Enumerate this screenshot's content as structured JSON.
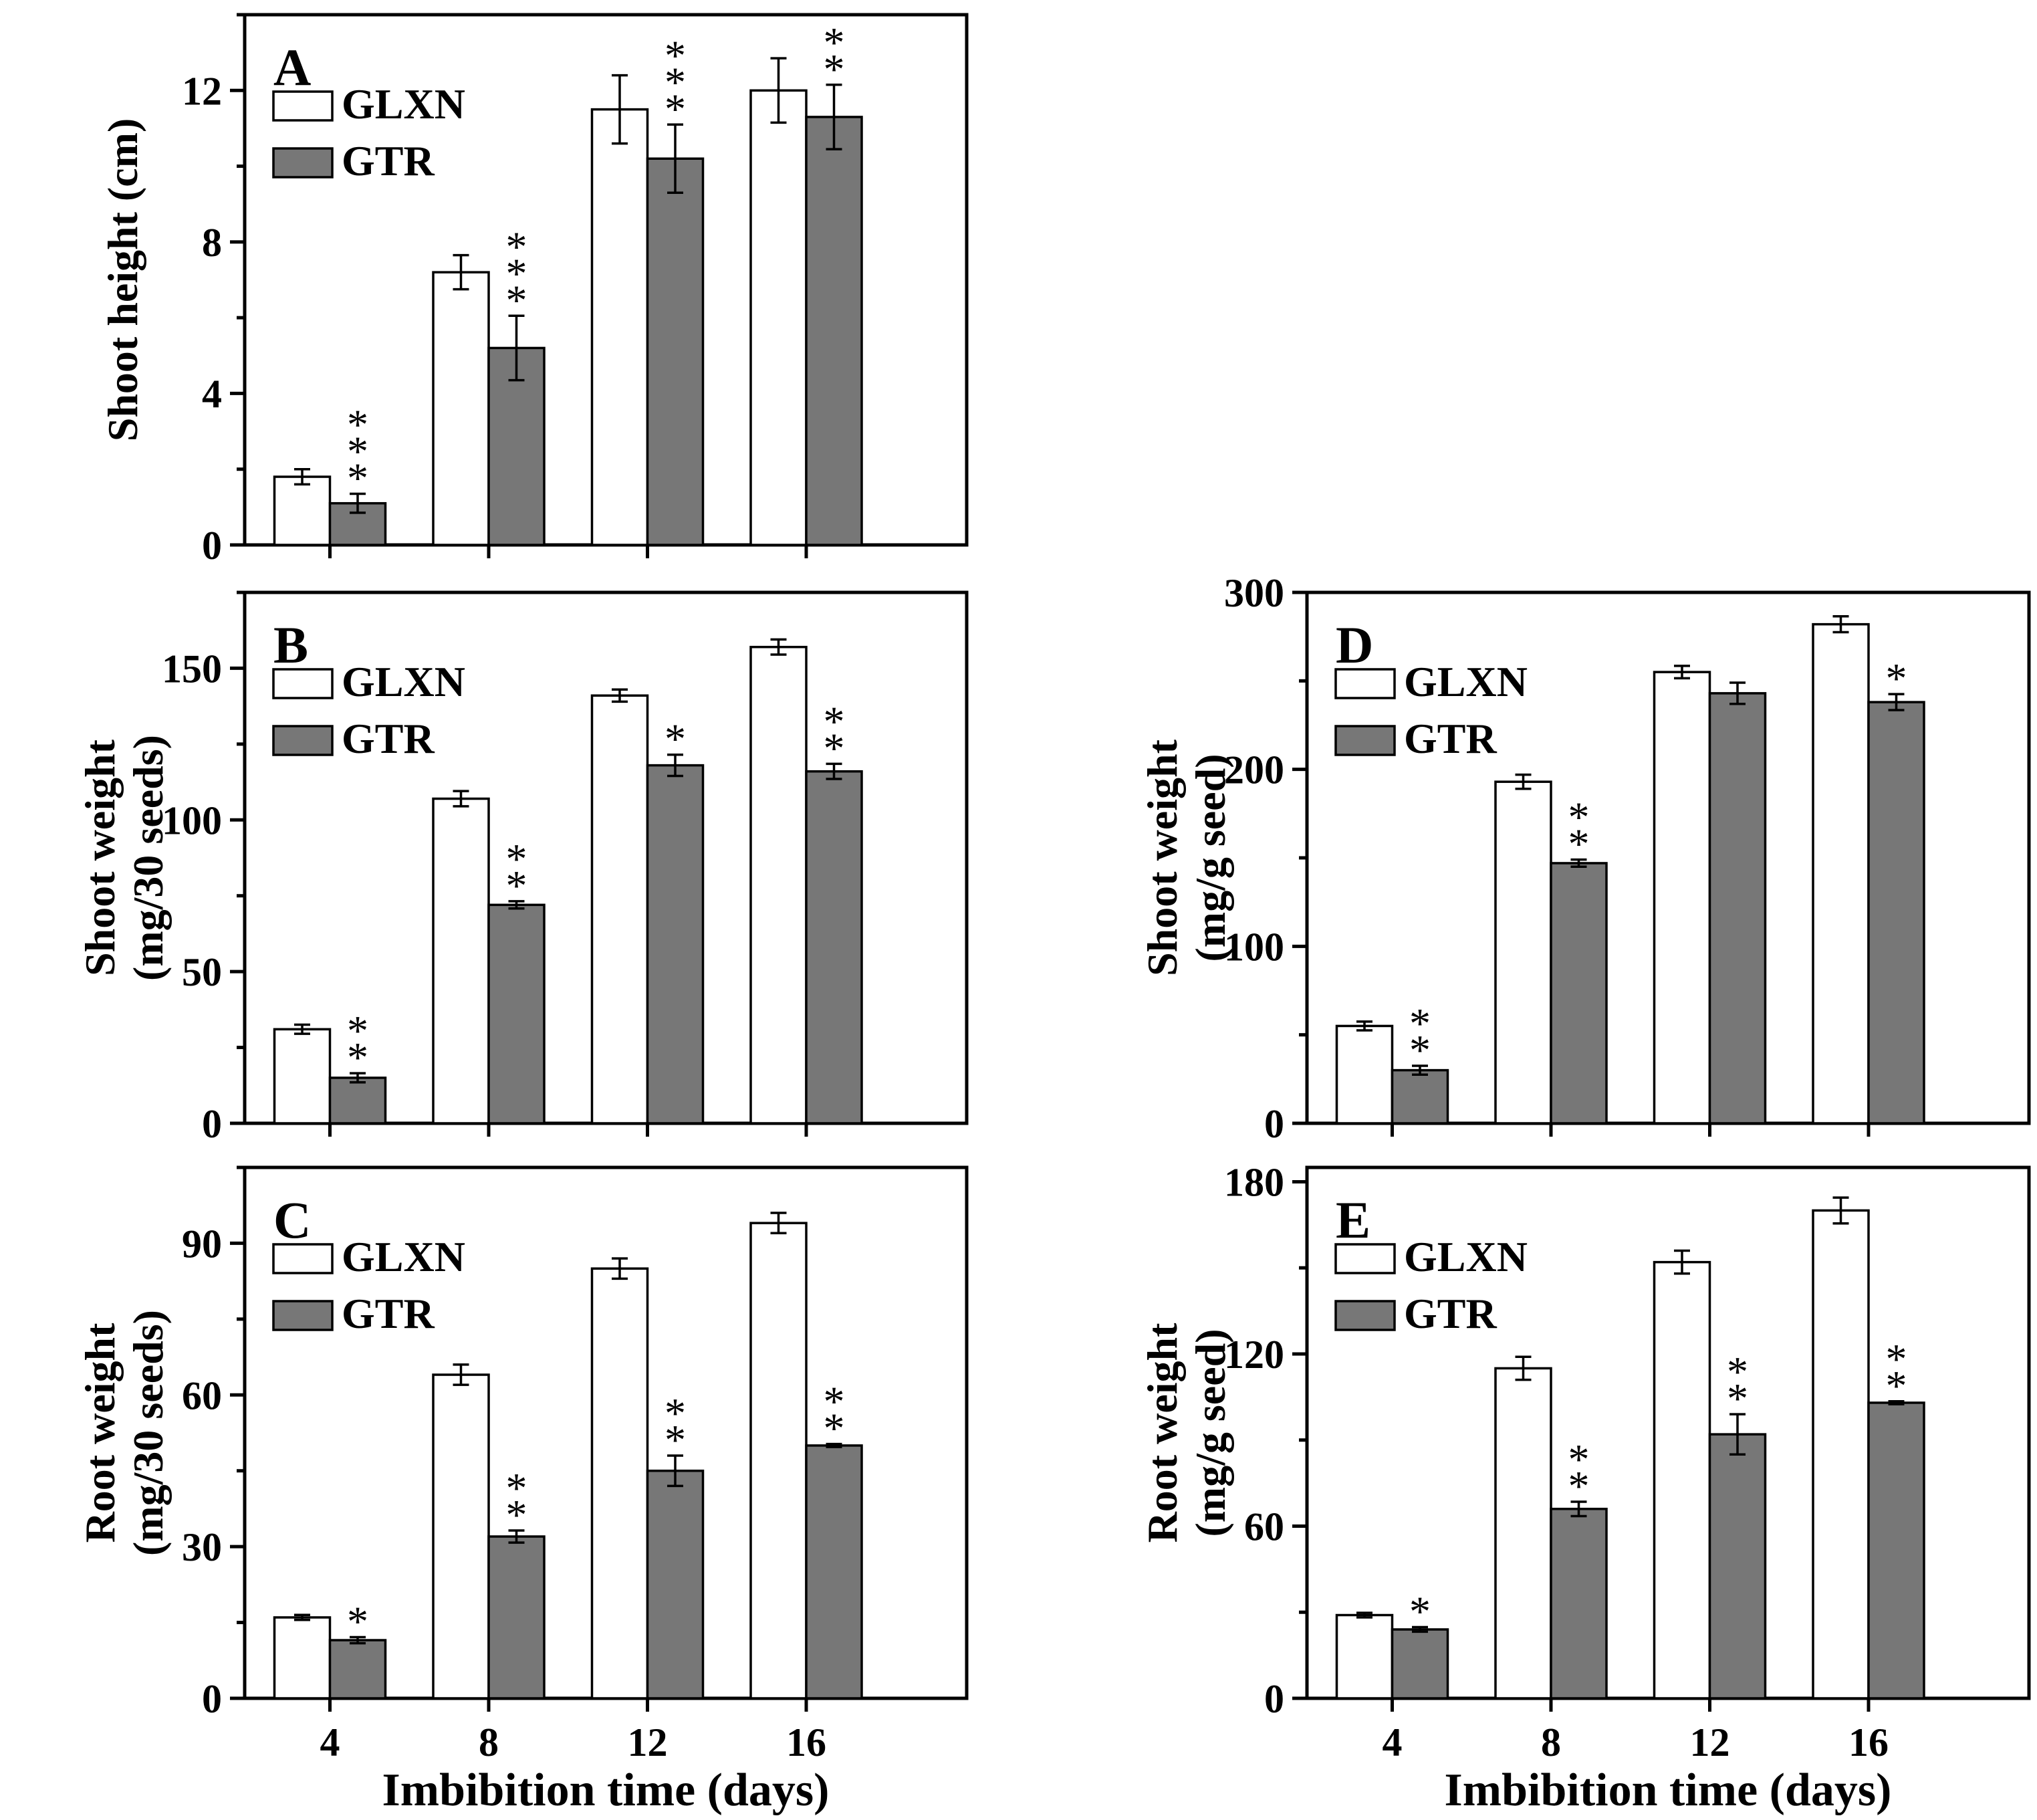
{
  "figure": {
    "xlabel": "Imbibition time (days)",
    "legend": [
      "GLXN",
      "GTR"
    ],
    "colors": {
      "GLXN": "#ffffff",
      "GTR": "#777777",
      "axis": "#000000"
    }
  },
  "chart_data": [
    {
      "id": "A",
      "panel_label": "A",
      "type": "bar",
      "ylabel": [
        "Shoot height (cm)"
      ],
      "ylim": [
        0,
        14
      ],
      "yticks": [
        0,
        4,
        8,
        12
      ],
      "categories": [
        "4",
        "8",
        "12",
        "16"
      ],
      "show_xticklabels": false,
      "series": [
        {
          "name": "GLXN",
          "values": [
            1.8,
            7.2,
            11.5,
            12.0
          ],
          "errors": [
            0.2,
            0.45,
            0.9,
            0.85
          ]
        },
        {
          "name": "GTR",
          "values": [
            1.1,
            5.2,
            10.2,
            11.3
          ],
          "errors": [
            0.25,
            0.85,
            0.9,
            0.85
          ],
          "significance": [
            "***",
            "***",
            "***",
            "**"
          ]
        }
      ]
    },
    {
      "id": "B",
      "panel_label": "B",
      "type": "bar",
      "ylabel": [
        "Shoot weight",
        "(mg/30 seeds)"
      ],
      "ylim": [
        0,
        175
      ],
      "yticks": [
        0,
        50,
        100,
        150
      ],
      "categories": [
        "4",
        "8",
        "12",
        "16"
      ],
      "show_xticklabels": false,
      "series": [
        {
          "name": "GLXN",
          "values": [
            31,
            107,
            141,
            157
          ],
          "errors": [
            1.5,
            2.5,
            2.0,
            2.5
          ]
        },
        {
          "name": "GTR",
          "values": [
            15,
            72,
            118,
            116
          ],
          "errors": [
            1.5,
            1.2,
            3.5,
            2.5
          ],
          "significance": [
            "**",
            "**",
            "*",
            "**"
          ]
        }
      ]
    },
    {
      "id": "C",
      "panel_label": "C",
      "type": "bar",
      "ylabel": [
        "Root weight",
        "(mg/30 seeds)"
      ],
      "ylim": [
        0,
        105
      ],
      "yticks": [
        0,
        30,
        60,
        90
      ],
      "categories": [
        "4",
        "8",
        "12",
        "16"
      ],
      "show_xticklabels": true,
      "series": [
        {
          "name": "GLXN",
          "values": [
            16,
            64,
            85,
            94
          ],
          "errors": [
            0.5,
            2.0,
            2.0,
            2.0
          ]
        },
        {
          "name": "GTR",
          "values": [
            11.5,
            32,
            45,
            50
          ],
          "errors": [
            0.6,
            1.2,
            3.0,
            0.3
          ],
          "significance": [
            "*",
            "**",
            "**",
            "**"
          ]
        }
      ]
    },
    {
      "id": "D",
      "panel_label": "D",
      "type": "bar",
      "ylabel": [
        "Shoot weight",
        "(mg/g seed)"
      ],
      "ylim": [
        0,
        300
      ],
      "yticks": [
        0,
        100,
        200,
        300
      ],
      "categories": [
        "4",
        "8",
        "12",
        "16"
      ],
      "show_xticklabels": false,
      "series": [
        {
          "name": "GLXN",
          "values": [
            55,
            193,
            255,
            282
          ],
          "errors": [
            2.5,
            4.0,
            3.5,
            4.5
          ]
        },
        {
          "name": "GTR",
          "values": [
            30,
            147,
            243,
            238
          ],
          "errors": [
            2.5,
            2.0,
            6.0,
            4.5
          ],
          "significance": [
            "**",
            "**",
            "",
            "*"
          ]
        }
      ]
    },
    {
      "id": "E",
      "panel_label": "E",
      "type": "bar",
      "ylabel": [
        "Root weight",
        "(mg/g seed)"
      ],
      "ylim": [
        0,
        185
      ],
      "yticks": [
        0,
        60,
        120,
        180
      ],
      "categories": [
        "4",
        "8",
        "12",
        "16"
      ],
      "show_xticklabels": true,
      "series": [
        {
          "name": "GLXN",
          "values": [
            29,
            115,
            152,
            170
          ],
          "errors": [
            0.8,
            4.0,
            4.0,
            4.5
          ]
        },
        {
          "name": "GTR",
          "values": [
            24,
            66,
            92,
            103
          ],
          "errors": [
            0.8,
            2.5,
            7.0,
            0.5
          ],
          "significance": [
            "*",
            "**",
            "**",
            "**"
          ]
        }
      ]
    }
  ]
}
